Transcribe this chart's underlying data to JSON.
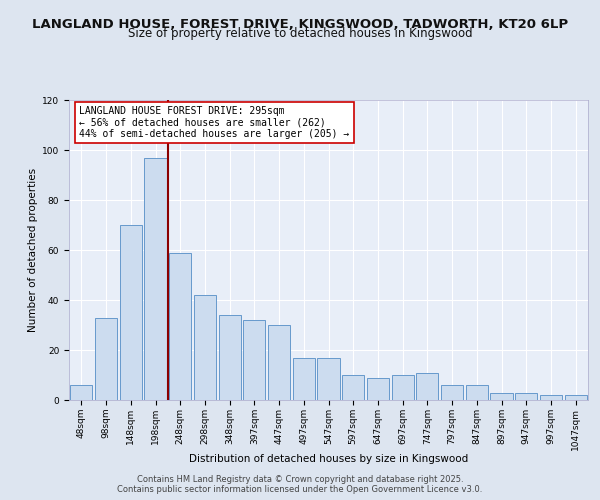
{
  "title_line1": "LANGLAND HOUSE, FOREST DRIVE, KINGSWOOD, TADWORTH, KT20 6LP",
  "title_line2": "Size of property relative to detached houses in Kingswood",
  "xlabel": "Distribution of detached houses by size in Kingswood",
  "ylabel": "Number of detached properties",
  "categories": [
    "48sqm",
    "98sqm",
    "148sqm",
    "198sqm",
    "248sqm",
    "298sqm",
    "348sqm",
    "397sqm",
    "447sqm",
    "497sqm",
    "547sqm",
    "597sqm",
    "647sqm",
    "697sqm",
    "747sqm",
    "797sqm",
    "847sqm",
    "897sqm",
    "947sqm",
    "997sqm",
    "1047sqm"
  ],
  "values": [
    6,
    33,
    70,
    97,
    59,
    42,
    34,
    32,
    30,
    17,
    17,
    10,
    9,
    10,
    11,
    6,
    6,
    3,
    3,
    2,
    2
  ],
  "bar_color": "#ccdcef",
  "bar_edge_color": "#6699cc",
  "reference_line_x": 3.5,
  "reference_line_color": "#8b0000",
  "annotation_text": "LANGLAND HOUSE FOREST DRIVE: 295sqm\n← 56% of detached houses are smaller (262)\n44% of semi-detached houses are larger (205) →",
  "annotation_box_color": "#ffffff",
  "annotation_box_edge_color": "#cc0000",
  "ylim": [
    0,
    120
  ],
  "yticks": [
    0,
    20,
    40,
    60,
    80,
    100,
    120
  ],
  "background_color": "#dde5f0",
  "plot_background_color": "#e8eef8",
  "grid_color": "#ffffff",
  "title_fontsize": 9.5,
  "subtitle_fontsize": 8.5,
  "axis_label_fontsize": 7.5,
  "tick_fontsize": 6.5,
  "annotation_fontsize": 7,
  "footer_fontsize": 6
}
